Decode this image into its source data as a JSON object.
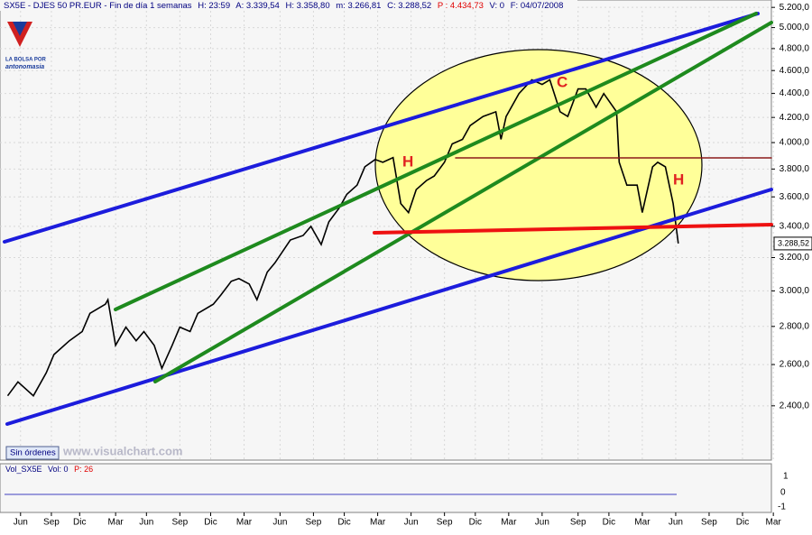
{
  "chart_data": {
    "type": "line",
    "header": [
      "SX5E - DJES 50 PR.EUR - Fin de día 1 semanas",
      "H: 23:59",
      "A: 3.339,54",
      "H: 3.358,80",
      "m: 3.266,81",
      "C: 3.288,52",
      "P : 4.434,73",
      "V: 0",
      "F: 04/07/2008"
    ],
    "logo": [
      "LA BOLSA POR",
      "antonomasia"
    ],
    "annotations": [
      "H",
      "C",
      "H"
    ],
    "last_label": "3.288,52",
    "footer": [
      "Sin órdenes",
      "www.visualchart.com"
    ],
    "volume": {
      "title": [
        "Vol_SX5E",
        "Vol: 0",
        "P: 26"
      ],
      "ticks": [
        "1",
        "0",
        "-1"
      ]
    },
    "x": [
      1,
      5,
      11,
      16,
      19,
      25,
      30,
      33,
      39,
      40,
      43,
      47,
      51,
      54,
      58,
      61,
      65,
      68,
      72,
      75,
      81,
      84,
      88,
      91,
      95,
      98,
      102,
      105,
      111,
      116,
      119,
      123,
      126,
      130,
      133,
      137,
      140,
      144,
      147,
      151,
      154,
      157,
      160,
      164,
      167,
      171,
      174,
      178,
      181,
      186,
      191,
      193,
      195,
      200,
      205,
      209,
      212,
      216,
      219,
      223,
      226,
      230,
      233,
      238,
      239,
      242,
      246,
      248,
      252,
      254,
      257,
      260,
      262
    ],
    "series": [
      {
        "name": "SX5E",
        "color": "#000000",
        "values": [
          2447,
          2514,
          2447,
          2559,
          2651,
          2723,
          2772,
          2872,
          2923,
          2949,
          2699,
          2796,
          2723,
          2772,
          2699,
          2581,
          2699,
          2796,
          2772,
          2872,
          2923,
          2976,
          3056,
          3072,
          3040,
          2949,
          3111,
          3167,
          3311,
          3340,
          3400,
          3282,
          3430,
          3523,
          3618,
          3683,
          3816,
          3871,
          3850,
          3885,
          3554,
          3492,
          3651,
          3716,
          3749,
          3850,
          3990,
          4025,
          4134,
          4208,
          4246,
          4025,
          4208,
          4399,
          4518,
          4478,
          4518,
          4246,
          4208,
          4439,
          4439,
          4284,
          4399,
          4246,
          3850,
          3683,
          3683,
          3492,
          3816,
          3850,
          3816,
          3554,
          3288.52
        ]
      }
    ],
    "xlim": [
      -2,
      300
    ],
    "xticks": [
      {
        "value": 6,
        "label": "Jun"
      },
      {
        "value": 18,
        "label": "Sep"
      },
      {
        "value": 29,
        "label": "Dic"
      },
      {
        "value": 43,
        "label": "Mar"
      },
      {
        "value": 55,
        "label": "Jun"
      },
      {
        "value": 68,
        "label": "Sep"
      },
      {
        "value": 80,
        "label": "Dic"
      },
      {
        "value": 93,
        "label": "Mar"
      },
      {
        "value": 107,
        "label": "Jun"
      },
      {
        "value": 120,
        "label": "Sep"
      },
      {
        "value": 132,
        "label": "Dic"
      },
      {
        "value": 145,
        "label": "Mar"
      },
      {
        "value": 158,
        "label": "Jun"
      },
      {
        "value": 171,
        "label": "Sep"
      },
      {
        "value": 183,
        "label": "Dic"
      },
      {
        "value": 196,
        "label": "Mar"
      },
      {
        "value": 209,
        "label": "Jun"
      },
      {
        "value": 223,
        "label": "Sep"
      },
      {
        "value": 235,
        "label": "Dic"
      },
      {
        "value": 248,
        "label": "Mar"
      },
      {
        "value": 261,
        "label": "Jun"
      },
      {
        "value": 274,
        "label": "Sep"
      },
      {
        "value": 287,
        "label": "Dic"
      },
      {
        "value": 299,
        "label": "Mar"
      }
    ],
    "ylim": [
      2160,
      5275
    ],
    "log_scale": true,
    "grid": true,
    "yticks": [
      {
        "value": 2400,
        "label": "2.400,0"
      },
      {
        "value": 2600,
        "label": "2.600,0"
      },
      {
        "value": 2800,
        "label": "2.800,0"
      },
      {
        "value": 3000,
        "label": "3.000,0"
      },
      {
        "value": 3200,
        "label": "3.200,0"
      },
      {
        "value": 3400,
        "label": "3.400,0"
      },
      {
        "value": 3600,
        "label": "3.600,0"
      },
      {
        "value": 3800,
        "label": "3.800,0"
      },
      {
        "value": 4000,
        "label": "4.000,0"
      },
      {
        "value": 4200,
        "label": "4.200,0"
      },
      {
        "value": 4400,
        "label": "4.400,0"
      },
      {
        "value": 4600,
        "label": "4.600,0"
      },
      {
        "value": 4800,
        "label": "4.800,0"
      },
      {
        "value": 5000,
        "label": "5.000,0"
      },
      {
        "value": 5200,
        "label": "5.200,0"
      }
    ]
  }
}
